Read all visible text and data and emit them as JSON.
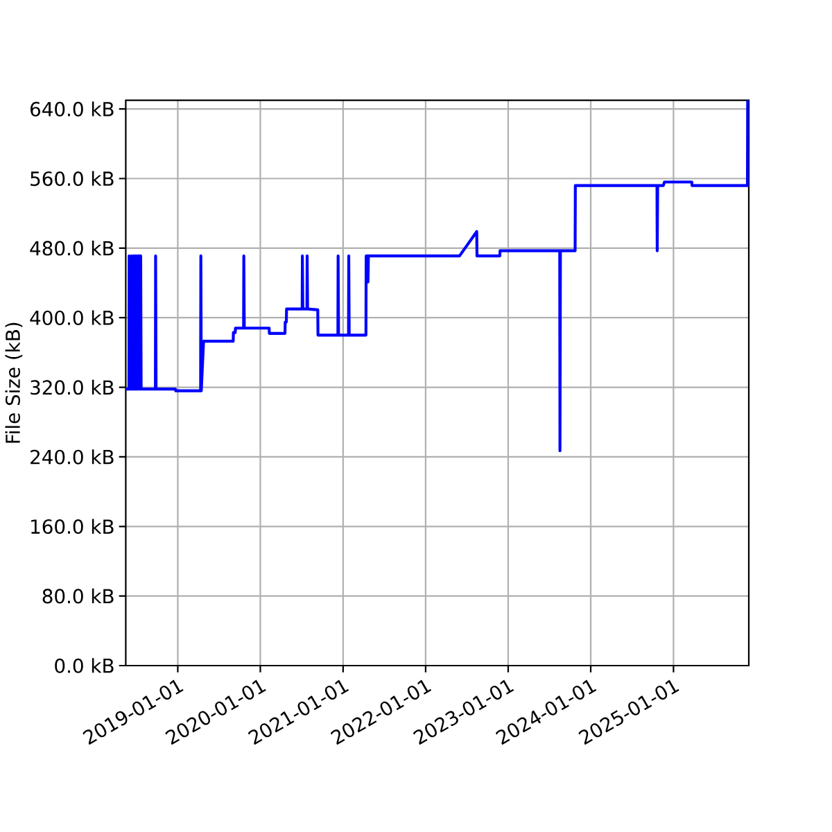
{
  "chart_data": {
    "type": "line",
    "ylabel": "File Size (kB)",
    "x": [
      "2018-05-16",
      "2018-05-30",
      "2018-05-31",
      "2018-06-02",
      "2018-06-10",
      "2018-06-11",
      "2018-06-13",
      "2018-06-19",
      "2018-06-20",
      "2018-06-22",
      "2018-06-25",
      "2018-06-26",
      "2018-06-28",
      "2018-07-01",
      "2018-07-02",
      "2018-07-04",
      "2018-07-08",
      "2018-07-09",
      "2018-07-11",
      "2018-07-14",
      "2018-07-15",
      "2018-07-17",
      "2018-07-20",
      "2018-07-21",
      "2018-07-23",
      "2018-09-24",
      "2018-09-25",
      "2018-09-27",
      "2018-12-21",
      "2018-12-23",
      "2019-04-12",
      "2019-04-13",
      "2019-04-15",
      "2019-04-25",
      "2019-09-03",
      "2019-09-04",
      "2019-09-12",
      "2019-09-13",
      "2019-10-19",
      "2019-10-20",
      "2019-10-22",
      "2020-02-09",
      "2020-02-10",
      "2020-04-19",
      "2020-04-20",
      "2020-04-25",
      "2020-04-26",
      "2020-07-04",
      "2020-07-05",
      "2020-07-07",
      "2020-07-25",
      "2020-07-26",
      "2020-07-28",
      "2020-09-11",
      "2020-09-12",
      "2020-12-09",
      "2020-12-10",
      "2020-12-12",
      "2021-01-25",
      "2021-01-26",
      "2021-01-28",
      "2021-04-12",
      "2021-04-13",
      "2021-04-20",
      "2021-04-21",
      "2021-04-23",
      "2022-05-31",
      "2022-08-15",
      "2022-08-16",
      "2022-11-25",
      "2022-11-26",
      "2023-08-17",
      "2023-08-18",
      "2023-08-20",
      "2023-10-24",
      "2023-10-25",
      "2024-10-20",
      "2024-10-21",
      "2024-10-23",
      "2024-11-17",
      "2024-11-22",
      "2025-03-23",
      "2025-03-24",
      "2025-11-24",
      "2025-11-25"
    ],
    "values": [
      318,
      318,
      471,
      318,
      318,
      471,
      318,
      318,
      471,
      318,
      318,
      471,
      318,
      318,
      471,
      318,
      318,
      471,
      318,
      318,
      471,
      318,
      318,
      471,
      318,
      318,
      471,
      318,
      318,
      316,
      316,
      471,
      316,
      373,
      373,
      383,
      383,
      388,
      388,
      471,
      388,
      388,
      382,
      382,
      395,
      395,
      410,
      410,
      471,
      410,
      410,
      471,
      410,
      409,
      380,
      380,
      471,
      380,
      380,
      471,
      380,
      380,
      471,
      471,
      441,
      471,
      471,
      499,
      471,
      471,
      477,
      477,
      247,
      477,
      477,
      552,
      552,
      477,
      552,
      552,
      556,
      556,
      552,
      552,
      649
    ],
    "color": "#0000ff",
    "marker": "none",
    "line_style": "solid",
    "xlim": [
      "2018-05-16",
      "2025-11-30"
    ],
    "ylim": [
      0,
      650
    ],
    "xticks": [
      "2019-01-01",
      "2020-01-01",
      "2021-01-01",
      "2022-01-01",
      "2023-01-01",
      "2024-01-01",
      "2025-01-01"
    ],
    "yticks": [
      {
        "value": 0,
        "label": "0.0 kB"
      },
      {
        "value": 80,
        "label": "80.0 kB"
      },
      {
        "value": 160,
        "label": "160.0 kB"
      },
      {
        "value": 240,
        "label": "240.0 kB"
      },
      {
        "value": 320,
        "label": "320.0 kB"
      },
      {
        "value": 400,
        "label": "400.0 kB"
      },
      {
        "value": 480,
        "label": "480.0 kB"
      },
      {
        "value": 560,
        "label": "560.0 kB"
      },
      {
        "value": 640,
        "label": "640.0 kB"
      }
    ],
    "grid": true
  }
}
